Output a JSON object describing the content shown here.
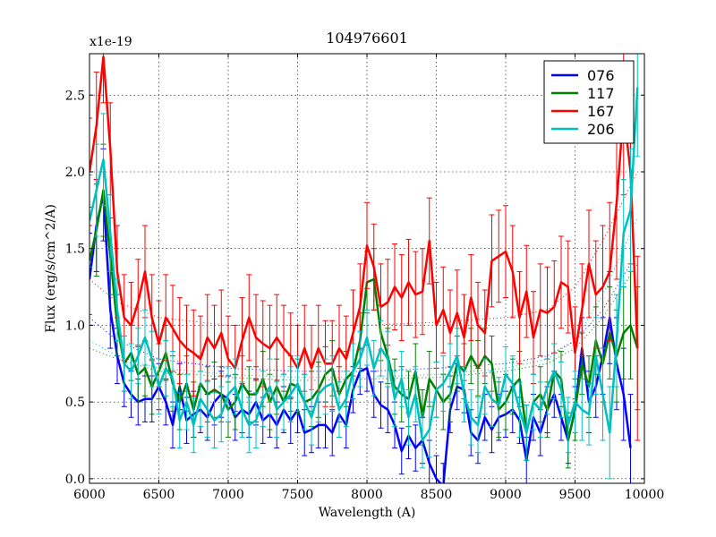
{
  "chart_data": {
    "type": "line",
    "title": "104976601",
    "xlabel": "Wavelength (A)",
    "ylabel": "Flux (erg/s/cm^2/A)",
    "y_multiplier": "x1e-19",
    "xlim": [
      6000,
      10000
    ],
    "ylim": [
      -0.03,
      2.77
    ],
    "xticks": [
      6000,
      6500,
      7000,
      7500,
      8000,
      8500,
      9000,
      9500,
      10000
    ],
    "yticks": [
      0.0,
      0.5,
      1.0,
      1.5,
      2.0,
      2.5
    ],
    "xtick_labels": [
      "6000",
      "6500",
      "7000",
      "7500",
      "8000",
      "8500",
      "9000",
      "9500",
      "10000"
    ],
    "ytick_labels": [
      "0.0",
      "0.5",
      "1.0",
      "1.5",
      "2.0",
      "2.5"
    ],
    "grid": true,
    "legend": "top-right",
    "series": [
      {
        "name": "076",
        "color": "#0000ff",
        "x": [
          6000,
          6050,
          6100,
          6150,
          6200,
          6250,
          6300,
          6350,
          6400,
          6450,
          6500,
          6550,
          6600,
          6650,
          6700,
          6750,
          6800,
          6850,
          6900,
          6950,
          7000,
          7050,
          7100,
          7150,
          7200,
          7250,
          7300,
          7350,
          7400,
          7450,
          7500,
          7550,
          7600,
          7650,
          7700,
          7750,
          7800,
          7850,
          7900,
          7950,
          8000,
          8050,
          8100,
          8150,
          8200,
          8250,
          8300,
          8350,
          8400,
          8450,
          8500,
          8550,
          8600,
          8650,
          8700,
          8750,
          8800,
          8850,
          8900,
          8950,
          9000,
          9050,
          9100,
          9150,
          9200,
          9250,
          9300,
          9350,
          9400,
          9450,
          9500,
          9550,
          9600,
          9650,
          9700,
          9750,
          9800,
          9850,
          9900
        ],
        "y": [
          1.3,
          1.65,
          1.85,
          1.1,
          0.8,
          0.62,
          0.55,
          0.5,
          0.52,
          0.52,
          0.6,
          0.5,
          0.35,
          0.6,
          0.38,
          0.42,
          0.45,
          0.4,
          0.5,
          0.55,
          0.52,
          0.4,
          0.45,
          0.42,
          0.5,
          0.38,
          0.42,
          0.35,
          0.45,
          0.38,
          0.45,
          0.3,
          0.32,
          0.35,
          0.35,
          0.3,
          0.42,
          0.35,
          0.58,
          0.7,
          0.72,
          0.55,
          0.48,
          0.45,
          0.35,
          0.18,
          0.28,
          0.2,
          0.25,
          0.1,
          0.0,
          -0.05,
          0.45,
          0.6,
          0.58,
          0.3,
          0.25,
          0.4,
          0.32,
          0.4,
          0.42,
          0.45,
          0.38,
          0.12,
          0.4,
          0.3,
          0.45,
          0.55,
          0.4,
          0.25,
          0.45,
          0.85,
          0.5,
          0.6,
          0.8,
          1.05,
          0.75,
          0.55,
          0.2
        ],
        "err": [
          0.3,
          0.3,
          0.3,
          0.25,
          0.18,
          0.15,
          0.15,
          0.15,
          0.15,
          0.15,
          0.15,
          0.15,
          0.15,
          0.15,
          0.15,
          0.15,
          0.15,
          0.15,
          0.15,
          0.15,
          0.15,
          0.15,
          0.15,
          0.15,
          0.15,
          0.15,
          0.15,
          0.15,
          0.15,
          0.15,
          0.15,
          0.15,
          0.15,
          0.15,
          0.15,
          0.15,
          0.15,
          0.15,
          0.15,
          0.15,
          0.15,
          0.15,
          0.15,
          0.15,
          0.15,
          0.15,
          0.15,
          0.15,
          0.15,
          0.15,
          0.15,
          0.15,
          0.15,
          0.15,
          0.15,
          0.15,
          0.15,
          0.15,
          0.15,
          0.15,
          0.15,
          0.15,
          0.15,
          0.15,
          0.15,
          0.15,
          0.15,
          0.15,
          0.15,
          0.15,
          0.15,
          0.2,
          0.2,
          0.2,
          0.25,
          0.3,
          0.3,
          0.3,
          0.35
        ]
      },
      {
        "name": "117",
        "color": "#008000",
        "x": [
          6000,
          6050,
          6100,
          6150,
          6200,
          6250,
          6300,
          6350,
          6400,
          6450,
          6500,
          6550,
          6600,
          6650,
          6700,
          6750,
          6800,
          6850,
          6900,
          6950,
          7000,
          7050,
          7100,
          7150,
          7200,
          7250,
          7300,
          7350,
          7400,
          7450,
          7500,
          7550,
          7600,
          7650,
          7700,
          7750,
          7800,
          7850,
          7900,
          7950,
          8000,
          8050,
          8100,
          8150,
          8200,
          8250,
          8300,
          8350,
          8400,
          8450,
          8500,
          8550,
          8600,
          8650,
          8700,
          8750,
          8800,
          8850,
          8900,
          8950,
          9000,
          9050,
          9100,
          9150,
          9200,
          9250,
          9300,
          9350,
          9400,
          9450,
          9500,
          9550,
          9600,
          9650,
          9700,
          9750,
          9800,
          9850,
          9900,
          9950
        ],
        "y": [
          1.42,
          1.62,
          1.88,
          1.45,
          1.0,
          0.75,
          0.82,
          0.68,
          0.72,
          0.6,
          0.7,
          0.82,
          0.62,
          0.5,
          0.62,
          0.45,
          0.62,
          0.55,
          0.58,
          0.55,
          0.45,
          0.5,
          0.62,
          0.55,
          0.55,
          0.65,
          0.5,
          0.6,
          0.5,
          0.62,
          0.6,
          0.5,
          0.52,
          0.58,
          0.68,
          0.72,
          0.55,
          0.65,
          0.7,
          0.9,
          1.28,
          1.3,
          0.95,
          0.8,
          0.6,
          0.55,
          0.52,
          0.7,
          0.4,
          0.65,
          0.58,
          0.5,
          0.55,
          0.75,
          0.7,
          0.8,
          0.72,
          0.8,
          0.75,
          0.45,
          0.5,
          0.6,
          0.65,
          0.3,
          0.5,
          0.55,
          0.45,
          0.7,
          0.65,
          0.25,
          0.45,
          0.75,
          0.6,
          0.9,
          0.75,
          0.95,
          0.8,
          0.95,
          1.0,
          0.85
        ],
        "err": [
          0.35,
          0.3,
          0.3,
          0.25,
          0.2,
          0.18,
          0.18,
          0.18,
          0.18,
          0.18,
          0.18,
          0.18,
          0.18,
          0.18,
          0.18,
          0.18,
          0.18,
          0.18,
          0.18,
          0.18,
          0.18,
          0.18,
          0.18,
          0.18,
          0.18,
          0.18,
          0.18,
          0.18,
          0.18,
          0.18,
          0.18,
          0.18,
          0.18,
          0.18,
          0.18,
          0.18,
          0.18,
          0.18,
          0.18,
          0.18,
          0.2,
          0.2,
          0.18,
          0.18,
          0.18,
          0.18,
          0.18,
          0.18,
          0.18,
          0.18,
          0.18,
          0.18,
          0.18,
          0.18,
          0.18,
          0.18,
          0.18,
          0.18,
          0.18,
          0.18,
          0.18,
          0.18,
          0.18,
          0.18,
          0.18,
          0.18,
          0.18,
          0.18,
          0.18,
          0.18,
          0.2,
          0.2,
          0.2,
          0.22,
          0.25,
          0.3,
          0.3,
          0.3,
          0.35,
          0.4
        ]
      },
      {
        "name": "167",
        "color": "#ff0000",
        "x": [
          6000,
          6050,
          6100,
          6150,
          6200,
          6250,
          6300,
          6350,
          6400,
          6450,
          6500,
          6550,
          6600,
          6650,
          6700,
          6750,
          6800,
          6850,
          6900,
          6950,
          7000,
          7050,
          7100,
          7150,
          7200,
          7250,
          7300,
          7350,
          7400,
          7450,
          7500,
          7550,
          7600,
          7650,
          7700,
          7750,
          7800,
          7850,
          7900,
          7950,
          8000,
          8050,
          8100,
          8150,
          8200,
          8250,
          8300,
          8350,
          8400,
          8450,
          8500,
          8550,
          8600,
          8650,
          8700,
          8750,
          8800,
          8850,
          8900,
          8950,
          9000,
          9050,
          9100,
          9150,
          9200,
          9250,
          9300,
          9350,
          9400,
          9450,
          9500,
          9550,
          9600,
          9650,
          9700,
          9750,
          9800,
          9850,
          9900,
          9950
        ],
        "y": [
          2.0,
          2.3,
          2.75,
          2.15,
          1.35,
          1.05,
          1.0,
          1.15,
          1.35,
          1.05,
          0.88,
          1.05,
          0.98,
          0.9,
          0.85,
          0.82,
          0.78,
          0.92,
          0.85,
          0.95,
          0.78,
          0.72,
          0.9,
          1.05,
          0.92,
          0.88,
          0.85,
          0.92,
          0.85,
          0.8,
          0.72,
          0.85,
          0.72,
          0.85,
          0.75,
          0.75,
          0.85,
          0.78,
          0.95,
          1.12,
          1.52,
          1.38,
          1.12,
          1.15,
          1.25,
          1.18,
          1.28,
          1.2,
          1.22,
          1.55,
          1.0,
          1.1,
          0.95,
          1.08,
          0.92,
          1.18,
          1.0,
          0.95,
          1.42,
          1.45,
          1.48,
          1.35,
          1.05,
          1.22,
          0.92,
          1.1,
          1.08,
          1.12,
          1.28,
          1.25,
          0.82,
          1.1,
          1.4,
          1.2,
          1.25,
          1.35,
          1.8,
          2.4,
          2.0,
          0.85
        ],
        "err": [
          0.35,
          0.35,
          0.3,
          0.3,
          0.3,
          0.28,
          0.28,
          0.28,
          0.3,
          0.28,
          0.28,
          0.28,
          0.28,
          0.28,
          0.28,
          0.28,
          0.28,
          0.28,
          0.28,
          0.28,
          0.28,
          0.28,
          0.28,
          0.28,
          0.28,
          0.28,
          0.28,
          0.28,
          0.28,
          0.28,
          0.28,
          0.28,
          0.28,
          0.28,
          0.28,
          0.28,
          0.28,
          0.28,
          0.28,
          0.28,
          0.28,
          0.28,
          0.28,
          0.28,
          0.28,
          0.28,
          0.28,
          0.28,
          0.28,
          0.28,
          0.28,
          0.28,
          0.28,
          0.28,
          0.28,
          0.28,
          0.28,
          0.28,
          0.3,
          0.3,
          0.3,
          0.3,
          0.3,
          0.3,
          0.3,
          0.3,
          0.3,
          0.3,
          0.3,
          0.3,
          0.3,
          0.3,
          0.35,
          0.35,
          0.4,
          0.45,
          0.5,
          0.55,
          0.6,
          0.6
        ]
      },
      {
        "name": "206",
        "color": "#00bfbf",
        "x": [
          6000,
          6050,
          6100,
          6150,
          6200,
          6250,
          6300,
          6350,
          6400,
          6450,
          6500,
          6550,
          6600,
          6650,
          6700,
          6750,
          6800,
          6850,
          6900,
          6950,
          7000,
          7050,
          7100,
          7150,
          7200,
          7250,
          7300,
          7350,
          7400,
          7450,
          7500,
          7550,
          7600,
          7650,
          7700,
          7750,
          7800,
          7850,
          7900,
          7950,
          8000,
          8050,
          8100,
          8150,
          8200,
          8250,
          8300,
          8350,
          8400,
          8450,
          8500,
          8550,
          8600,
          8650,
          8700,
          8750,
          8800,
          8850,
          8900,
          8950,
          9000,
          9050,
          9100,
          9150,
          9200,
          9250,
          9300,
          9350,
          9400,
          9450,
          9500,
          9550,
          9600,
          9650,
          9700,
          9750,
          9800,
          9850,
          9900,
          9950
        ],
        "y": [
          1.68,
          1.88,
          2.08,
          1.6,
          1.1,
          0.75,
          0.7,
          0.8,
          0.92,
          0.78,
          0.6,
          0.72,
          0.65,
          0.38,
          0.5,
          0.35,
          0.52,
          0.45,
          0.38,
          0.42,
          0.55,
          0.6,
          0.45,
          0.35,
          0.38,
          0.52,
          0.6,
          0.45,
          0.5,
          0.55,
          0.62,
          0.5,
          0.4,
          0.55,
          0.6,
          0.62,
          0.45,
          0.52,
          0.7,
          0.78,
          0.92,
          0.72,
          0.85,
          0.78,
          0.52,
          0.65,
          0.4,
          0.55,
          0.25,
          0.32,
          0.58,
          0.62,
          0.7,
          0.8,
          0.55,
          0.4,
          0.35,
          0.6,
          0.52,
          0.48,
          0.68,
          0.62,
          0.45,
          0.3,
          0.5,
          0.45,
          0.6,
          0.7,
          0.58,
          0.35,
          0.5,
          0.45,
          0.42,
          0.8,
          0.55,
          0.3,
          0.9,
          1.6,
          1.75,
          2.55
        ],
        "err": [
          0.3,
          0.3,
          0.3,
          0.25,
          0.2,
          0.18,
          0.18,
          0.18,
          0.18,
          0.18,
          0.18,
          0.18,
          0.18,
          0.18,
          0.18,
          0.18,
          0.18,
          0.18,
          0.18,
          0.18,
          0.18,
          0.18,
          0.18,
          0.18,
          0.18,
          0.18,
          0.18,
          0.18,
          0.18,
          0.18,
          0.18,
          0.18,
          0.18,
          0.18,
          0.18,
          0.18,
          0.18,
          0.18,
          0.18,
          0.18,
          0.18,
          0.18,
          0.18,
          0.18,
          0.18,
          0.18,
          0.18,
          0.18,
          0.18,
          0.18,
          0.18,
          0.18,
          0.18,
          0.18,
          0.18,
          0.18,
          0.18,
          0.18,
          0.18,
          0.18,
          0.18,
          0.18,
          0.18,
          0.18,
          0.18,
          0.18,
          0.18,
          0.18,
          0.18,
          0.18,
          0.2,
          0.2,
          0.2,
          0.25,
          0.3,
          0.3,
          0.3,
          0.35,
          0.4,
          0.45
        ]
      }
    ],
    "noise_curves": [
      {
        "name": "076-noise",
        "color": "#0000ff",
        "x": [
          6000,
          6200,
          6500,
          7000,
          7500,
          8000,
          8500,
          9000,
          9300,
          9500,
          9700,
          9900
        ],
        "y": [
          1.05,
          0.9,
          0.78,
          0.72,
          0.7,
          0.7,
          0.72,
          0.75,
          0.8,
          0.9,
          1.1,
          1.4
        ]
      },
      {
        "name": "117-noise",
        "color": "#008000",
        "x": [
          6000,
          6200,
          6500,
          7000,
          7500,
          8000,
          8500,
          9000,
          9300,
          9500,
          9700,
          9950
        ],
        "y": [
          0.85,
          0.78,
          0.7,
          0.66,
          0.64,
          0.65,
          0.66,
          0.7,
          0.75,
          0.85,
          1.05,
          1.4
        ]
      },
      {
        "name": "167-noise",
        "color": "#ff0000",
        "x": [
          6000,
          6200,
          6500,
          7000,
          7500,
          8000,
          8500,
          9000,
          9300,
          9500,
          9700,
          9950
        ],
        "y": [
          1.3,
          1.15,
          1.05,
          1.0,
          1.0,
          1.0,
          1.02,
          1.05,
          1.1,
          1.25,
          1.55,
          2.0
        ]
      },
      {
        "name": "206-noise",
        "color": "#00bfbf",
        "x": [
          6000,
          6200,
          6500,
          7000,
          7500,
          8000,
          8500,
          9000,
          9300,
          9500,
          9700,
          9950
        ],
        "y": [
          0.9,
          0.8,
          0.72,
          0.68,
          0.66,
          0.66,
          0.68,
          0.72,
          0.78,
          0.9,
          1.2,
          1.7
        ]
      }
    ]
  }
}
